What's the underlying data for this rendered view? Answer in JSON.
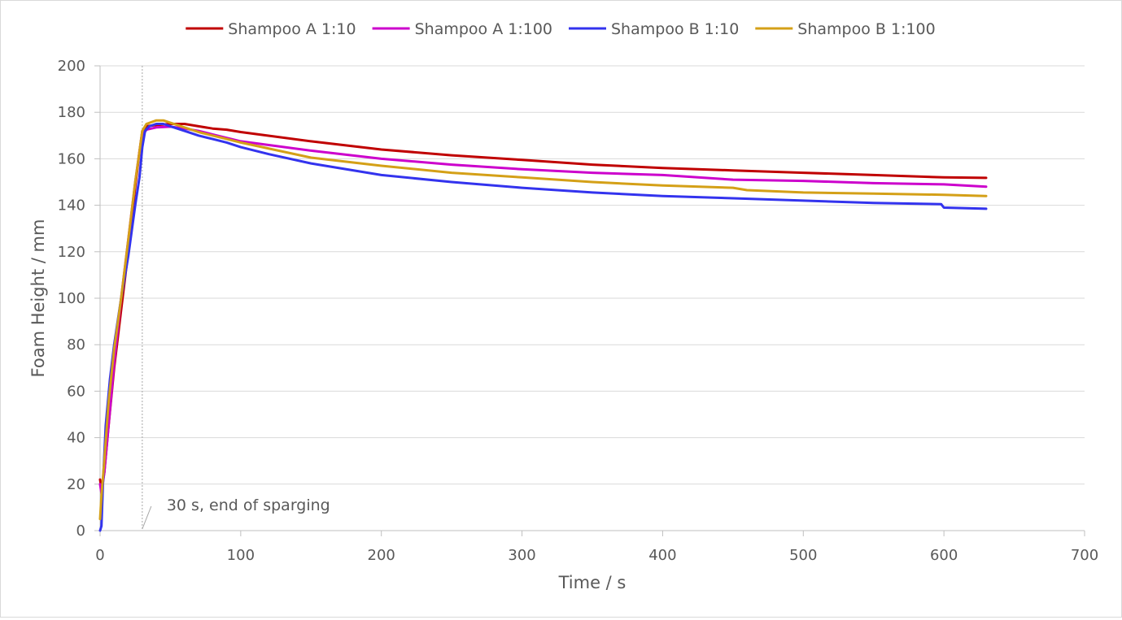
{
  "chart_data": {
    "type": "line",
    "title": "",
    "xlabel": "Time  / s",
    "ylabel": "Foam Height  / mm",
    "xlim": [
      0,
      700
    ],
    "ylim": [
      0,
      200
    ],
    "x_ticks": [
      0,
      100,
      200,
      300,
      400,
      500,
      600,
      700
    ],
    "y_ticks": [
      0,
      20,
      40,
      60,
      80,
      100,
      120,
      140,
      160,
      180,
      200
    ],
    "grid": "horizontal",
    "legend_position": "top",
    "annotation": {
      "text": "30 s, end of sparging",
      "x": 30
    },
    "series": [
      {
        "name": "Shampoo A 1:10",
        "color": "#c00000",
        "points": [
          [
            0,
            22
          ],
          [
            1,
            18
          ],
          [
            3,
            25
          ],
          [
            6,
            45
          ],
          [
            10,
            70
          ],
          [
            15,
            95
          ],
          [
            20,
            120
          ],
          [
            25,
            148
          ],
          [
            28,
            163
          ],
          [
            30,
            172
          ],
          [
            33,
            174
          ],
          [
            40,
            174.5
          ],
          [
            50,
            175
          ],
          [
            60,
            175
          ],
          [
            70,
            174
          ],
          [
            80,
            173
          ],
          [
            90,
            172.5
          ],
          [
            100,
            171.5
          ],
          [
            150,
            167.5
          ],
          [
            200,
            164
          ],
          [
            250,
            161.5
          ],
          [
            300,
            159.5
          ],
          [
            350,
            157.5
          ],
          [
            400,
            156
          ],
          [
            450,
            155
          ],
          [
            500,
            154
          ],
          [
            550,
            153
          ],
          [
            600,
            152
          ],
          [
            630,
            151.8
          ]
        ]
      },
      {
        "name": "Shampoo A 1:100",
        "color": "#cc00cc",
        "points": [
          [
            0,
            20
          ],
          [
            1,
            16
          ],
          [
            3,
            25
          ],
          [
            6,
            45
          ],
          [
            10,
            72
          ],
          [
            15,
            100
          ],
          [
            20,
            125
          ],
          [
            25,
            150
          ],
          [
            28,
            163
          ],
          [
            30,
            170
          ],
          [
            33,
            172.5
          ],
          [
            40,
            173.5
          ],
          [
            50,
            173.8
          ],
          [
            60,
            173
          ],
          [
            70,
            172
          ],
          [
            80,
            170.5
          ],
          [
            90,
            169
          ],
          [
            100,
            167.5
          ],
          [
            150,
            163.5
          ],
          [
            200,
            160
          ],
          [
            250,
            157.5
          ],
          [
            300,
            155.5
          ],
          [
            350,
            154
          ],
          [
            400,
            153
          ],
          [
            450,
            151
          ],
          [
            500,
            150.5
          ],
          [
            550,
            149.5
          ],
          [
            600,
            149
          ],
          [
            630,
            148
          ]
        ]
      },
      {
        "name": "Shampoo B 1:10",
        "color": "#3333ee",
        "points": [
          [
            0,
            0
          ],
          [
            1,
            2
          ],
          [
            2,
            20
          ],
          [
            4,
            45
          ],
          [
            7,
            65
          ],
          [
            10,
            80
          ],
          [
            15,
            100
          ],
          [
            20,
            118
          ],
          [
            25,
            140
          ],
          [
            28,
            152
          ],
          [
            30,
            165
          ],
          [
            32,
            172
          ],
          [
            35,
            174
          ],
          [
            40,
            175
          ],
          [
            45,
            175
          ],
          [
            50,
            174
          ],
          [
            60,
            172
          ],
          [
            70,
            170
          ],
          [
            80,
            168.5
          ],
          [
            90,
            167
          ],
          [
            100,
            165
          ],
          [
            120,
            162
          ],
          [
            150,
            158
          ],
          [
            200,
            153
          ],
          [
            250,
            150
          ],
          [
            300,
            147.5
          ],
          [
            350,
            145.5
          ],
          [
            400,
            144
          ],
          [
            450,
            143
          ],
          [
            500,
            142
          ],
          [
            550,
            141
          ],
          [
            598,
            140.5
          ],
          [
            600,
            139
          ],
          [
            630,
            138.5
          ]
        ]
      },
      {
        "name": "Shampoo B 1:100",
        "color": "#d4a017",
        "points": [
          [
            0,
            5
          ],
          [
            1,
            15
          ],
          [
            3,
            30
          ],
          [
            6,
            55
          ],
          [
            10,
            78
          ],
          [
            15,
            100
          ],
          [
            20,
            125
          ],
          [
            25,
            150
          ],
          [
            28,
            163
          ],
          [
            30,
            172
          ],
          [
            33,
            175
          ],
          [
            40,
            176.5
          ],
          [
            45,
            176.5
          ],
          [
            50,
            175.5
          ],
          [
            60,
            173.5
          ],
          [
            70,
            171.5
          ],
          [
            80,
            170
          ],
          [
            90,
            168.5
          ],
          [
            100,
            167
          ],
          [
            150,
            160.5
          ],
          [
            200,
            157
          ],
          [
            250,
            154
          ],
          [
            300,
            152
          ],
          [
            350,
            150
          ],
          [
            400,
            148.5
          ],
          [
            450,
            147.5
          ],
          [
            460,
            146.5
          ],
          [
            500,
            145.5
          ],
          [
            550,
            145
          ],
          [
            600,
            144.5
          ],
          [
            630,
            144
          ]
        ]
      }
    ]
  }
}
